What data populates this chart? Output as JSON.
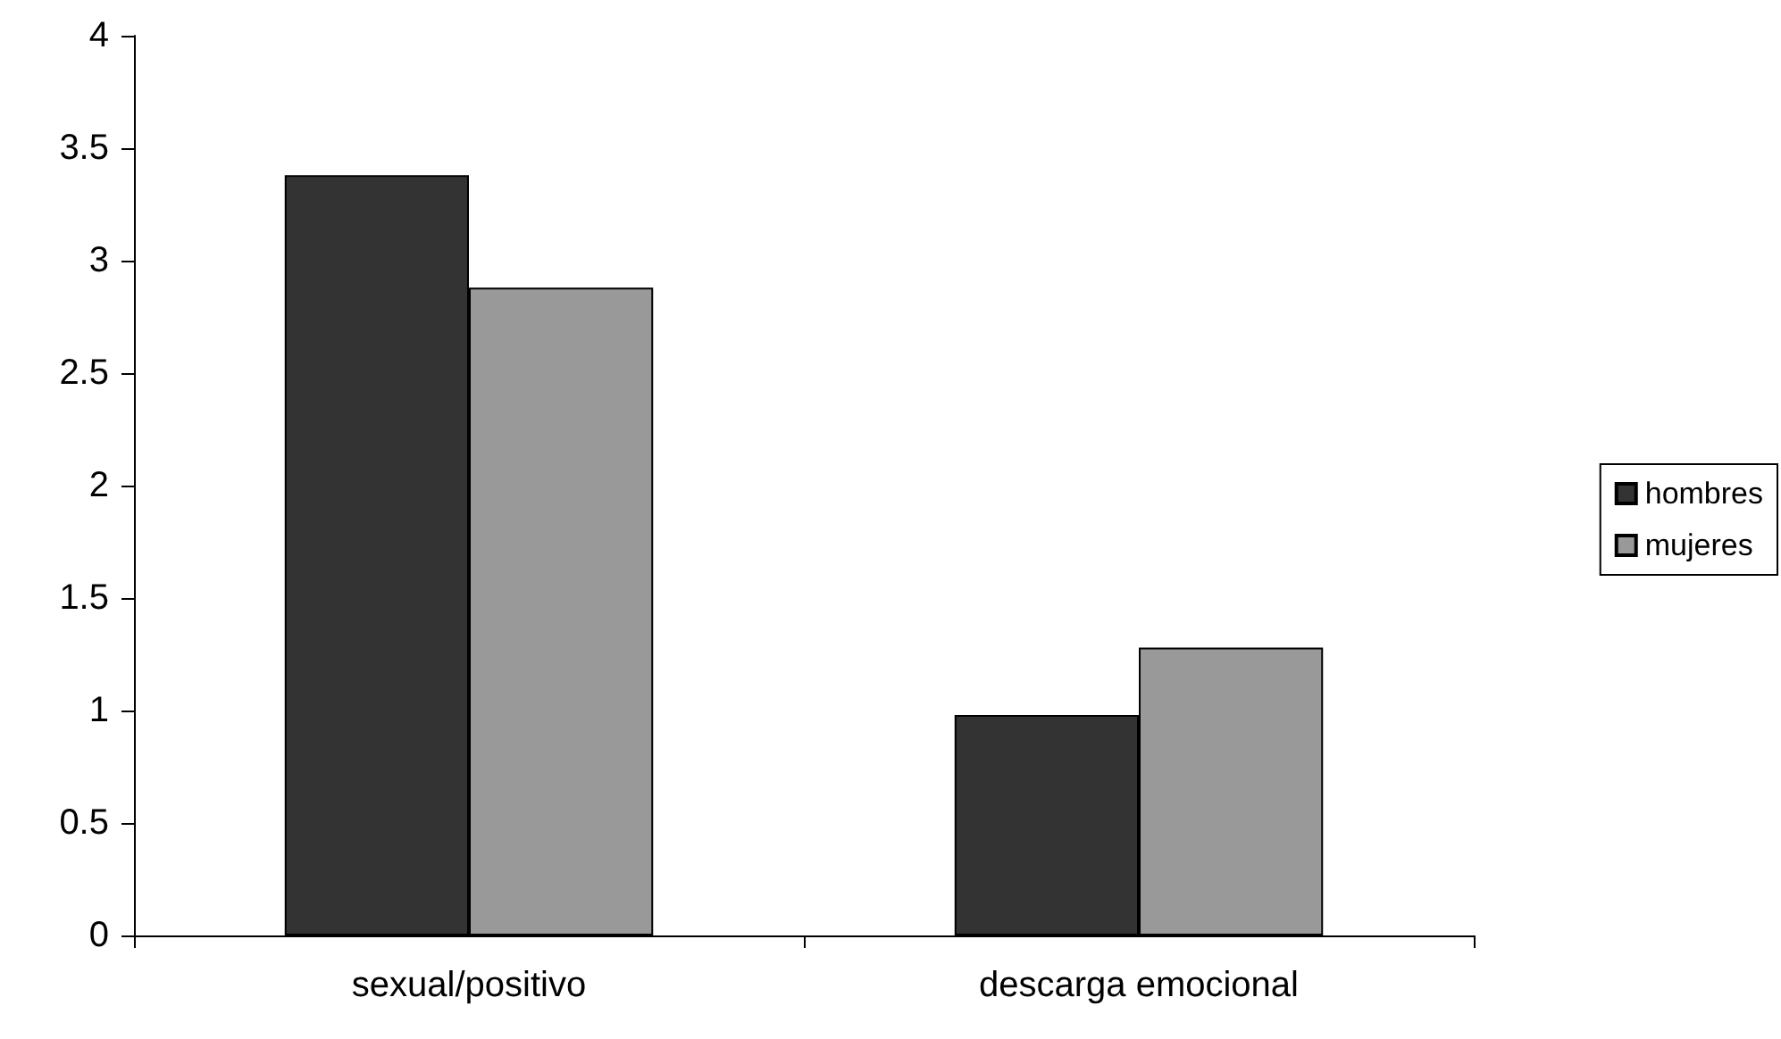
{
  "chart_data": {
    "type": "bar",
    "categories": [
      "sexual/positivo",
      "descarga emocional"
    ],
    "series": [
      {
        "name": "hombres",
        "color": "#333333",
        "values": [
          3.38,
          0.98
        ]
      },
      {
        "name": "mujeres",
        "color": "#999999",
        "values": [
          2.88,
          1.28
        ]
      }
    ],
    "ylim": [
      0,
      4
    ],
    "yticks": [
      0,
      0.5,
      1,
      1.5,
      2,
      2.5,
      3,
      3.5,
      4
    ],
    "grid": false,
    "legend": "right"
  }
}
